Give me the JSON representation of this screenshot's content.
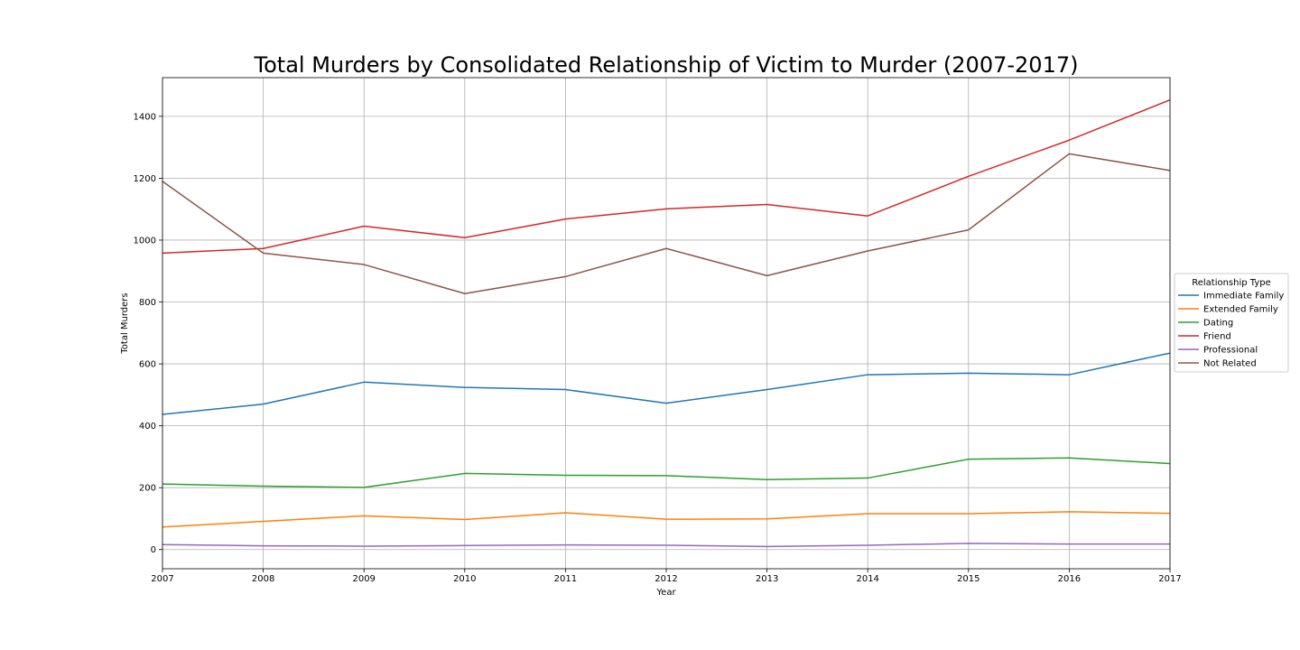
{
  "chart_data": {
    "type": "line",
    "title": "Total Murders by Consolidated Relationship of Victim to Murder (2007-2017)",
    "xlabel": "Year",
    "ylabel": "Total Murders",
    "x": [
      2007,
      2008,
      2009,
      2010,
      2011,
      2012,
      2013,
      2014,
      2015,
      2016,
      2017
    ],
    "xlim": [
      2007,
      2017
    ],
    "ylim": [
      -62,
      1525
    ],
    "yticks": [
      0,
      200,
      400,
      600,
      800,
      1000,
      1200,
      1400
    ],
    "grid": true,
    "legend": {
      "title": "Relationship Type",
      "placement": "outside-right"
    },
    "series": [
      {
        "name": "Immediate Family",
        "color": "#1f77b4",
        "values": [
          437,
          470,
          541,
          524,
          517,
          473,
          517,
          565,
          570,
          565,
          635
        ]
      },
      {
        "name": "Extended Family",
        "color": "#ff7f0e",
        "values": [
          73,
          91,
          109,
          97,
          119,
          98,
          99,
          116,
          116,
          122,
          117
        ]
      },
      {
        "name": "Dating",
        "color": "#2ca02c",
        "values": [
          212,
          205,
          201,
          246,
          240,
          239,
          226,
          231,
          292,
          296,
          278
        ]
      },
      {
        "name": "Friend",
        "color": "#d62728",
        "values": [
          958,
          973,
          1045,
          1008,
          1068,
          1101,
          1115,
          1078,
          1206,
          1323,
          1453
        ]
      },
      {
        "name": "Professional",
        "color": "#9467bd",
        "values": [
          16,
          12,
          11,
          13,
          15,
          14,
          10,
          14,
          20,
          18,
          18
        ]
      },
      {
        "name": "Not Related",
        "color": "#8c564b",
        "values": [
          1190,
          958,
          921,
          827,
          882,
          973,
          885,
          965,
          1033,
          1279,
          1225
        ]
      }
    ]
  }
}
